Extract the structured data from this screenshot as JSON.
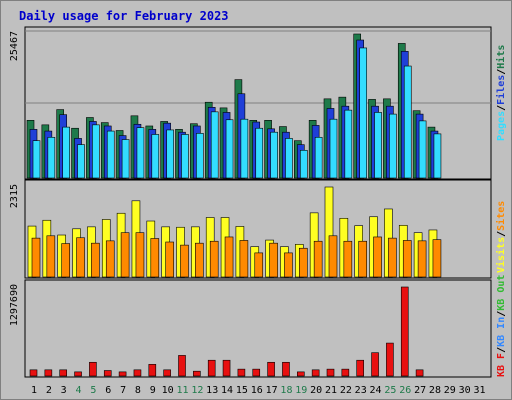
{
  "title": "Daily usage for February 2023",
  "colors": {
    "hits": "#1e7a4a",
    "files": "#1f3fd8",
    "pages": "#33ddff",
    "visits": "#ffff22",
    "sites": "#ff8a00",
    "kbf": "#e81010",
    "kbin": "#3388ff",
    "kbout": "#33bb33",
    "panel": "#c0c0c0",
    "grid": "#808080"
  },
  "chart_data": [
    {
      "type": "bar",
      "name": "pages-files-hits",
      "ymax_label": "25467",
      "ymax": 25467,
      "legend": [
        "Pages",
        "Files",
        "Hits"
      ],
      "x": [
        1,
        2,
        3,
        4,
        5,
        6,
        7,
        8,
        9,
        10,
        11,
        12,
        13,
        14,
        15,
        16,
        17,
        18,
        19,
        20,
        21,
        22,
        23,
        24,
        25,
        26,
        27,
        28
      ],
      "series": [
        {
          "name": "Hits",
          "values": [
            10200,
            9400,
            12100,
            8800,
            10700,
            9800,
            8400,
            11000,
            9200,
            10000,
            8600,
            9600,
            13400,
            12400,
            17400,
            10200,
            10200,
            9100,
            6600,
            10200,
            14000,
            14300,
            25467,
            13900,
            14000,
            23800,
            11900,
            9000
          ]
        },
        {
          "name": "Files",
          "values": [
            8600,
            8300,
            11200,
            7000,
            10000,
            9200,
            7500,
            9500,
            8600,
            9700,
            8100,
            9200,
            12500,
            11600,
            14900,
            9900,
            8700,
            8100,
            5900,
            9300,
            12300,
            12700,
            24400,
            12700,
            12700,
            22400,
            11300,
            8300
          ]
        },
        {
          "name": "Pages",
          "values": [
            6600,
            7200,
            9000,
            5900,
            9400,
            8300,
            6800,
            8900,
            7700,
            8500,
            7700,
            7900,
            11700,
            10300,
            10400,
            8800,
            8100,
            7000,
            4900,
            7200,
            10400,
            12000,
            23000,
            11600,
            11300,
            19800,
            10100,
            7800
          ]
        }
      ]
    },
    {
      "type": "bar",
      "name": "visits-sites",
      "ymax_label": "2315",
      "ymax": 2315,
      "legend": [
        "Visits",
        "Sites"
      ],
      "x": [
        1,
        2,
        3,
        4,
        5,
        6,
        7,
        8,
        9,
        10,
        11,
        12,
        13,
        14,
        15,
        16,
        17,
        18,
        19,
        20,
        21,
        22,
        23,
        24,
        25,
        26,
        27,
        28
      ],
      "series": [
        {
          "name": "Visits",
          "values": [
            1310,
            1460,
            1080,
            1240,
            1290,
            1480,
            1640,
            1960,
            1440,
            1290,
            1280,
            1290,
            1530,
            1530,
            1300,
            780,
            950,
            780,
            840,
            1650,
            2315,
            1510,
            1320,
            1550,
            1750,
            1330,
            1140,
            1210
          ]
        },
        {
          "name": "Sites",
          "values": [
            1000,
            1060,
            860,
            1010,
            870,
            930,
            1140,
            1140,
            990,
            900,
            820,
            870,
            920,
            1030,
            940,
            620,
            870,
            620,
            740,
            920,
            1060,
            920,
            920,
            1030,
            1000,
            940,
            930,
            960
          ]
        }
      ]
    },
    {
      "type": "bar",
      "name": "kbytes",
      "ymax_label": "1297690",
      "ymax": 1297690,
      "legend": [
        "KB F",
        "KB In",
        "KB Out"
      ],
      "x": [
        1,
        2,
        3,
        4,
        5,
        6,
        7,
        8,
        9,
        10,
        11,
        12,
        13,
        14,
        15,
        16,
        17,
        18,
        19,
        20,
        21,
        22,
        23,
        24,
        25,
        26,
        27,
        28
      ],
      "series": [
        {
          "name": "KB F",
          "values": [
            90000,
            90000,
            90000,
            60000,
            200000,
            80000,
            60000,
            90000,
            170000,
            90000,
            300000,
            70000,
            230000,
            230000,
            100000,
            100000,
            200000,
            200000,
            60000,
            90000,
            100000,
            100000,
            230000,
            340000,
            480000,
            1297690,
            90000,
            0
          ]
        }
      ]
    }
  ],
  "x_labels": [
    "1",
    "2",
    "3",
    "4",
    "5",
    "6",
    "7",
    "8",
    "9",
    "10",
    "11",
    "12",
    "13",
    "14",
    "15",
    "16",
    "17",
    "18",
    "19",
    "20",
    "21",
    "22",
    "23",
    "24",
    "25",
    "26",
    "27",
    "28",
    "29",
    "30",
    "31"
  ],
  "weekend_days": [
    4,
    5,
    11,
    12,
    18,
    19,
    25,
    26
  ]
}
